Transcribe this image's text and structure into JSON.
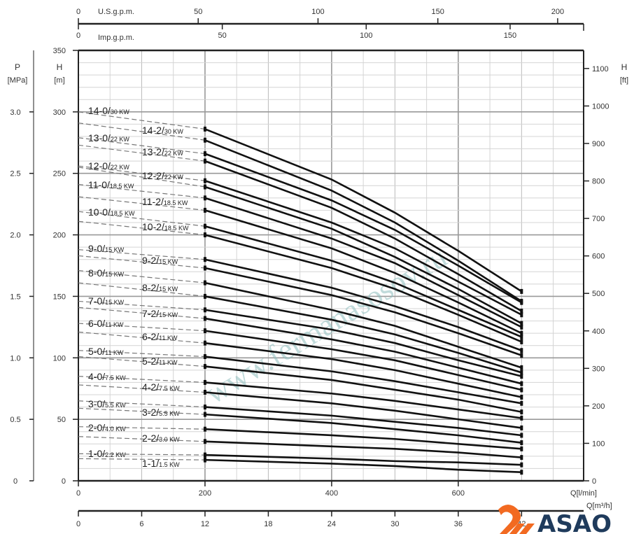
{
  "watermark": "www.fermanasosov.ru",
  "logo": {
    "text": "ASAO",
    "color": "#1f3b5c",
    "mark_color": "#f26a21"
  },
  "chart_data": {
    "type": "line",
    "grid": true,
    "x_axis": {
      "label": "Q[l/min]",
      "range": [
        0,
        800
      ],
      "ticks": [
        0,
        200,
        400,
        600
      ]
    },
    "x_axis_m3h": {
      "label": "Q[m³/h]",
      "ticks": [
        0,
        6,
        12,
        18,
        24,
        30,
        36,
        42
      ]
    },
    "x_axis_usgpm": {
      "label": "U.S.g.p.m.",
      "ticks": [
        0,
        50,
        100,
        150,
        200
      ]
    },
    "x_axis_impgpm": {
      "label": "Imp.g.p.m.",
      "ticks": [
        0,
        50,
        100,
        150
      ]
    },
    "y_axis_m": {
      "label": "H",
      "unit": "[m]",
      "range": [
        0,
        350
      ],
      "ticks": [
        0,
        50,
        100,
        150,
        200,
        250,
        300,
        350
      ]
    },
    "y_axis_mpa": {
      "label": "P",
      "unit": "[MPa]",
      "ticks": [
        "0",
        "0.5",
        "1.0",
        "1.5",
        "2.0",
        "2.5",
        "3.0"
      ]
    },
    "y_axis_ft": {
      "label": "H",
      "unit": "[ft]",
      "ticks": [
        0,
        100,
        200,
        300,
        400,
        500,
        600,
        700,
        800,
        900,
        1000,
        1100
      ]
    },
    "x": [
      200,
      400,
      500,
      600,
      700
    ],
    "series": [
      {
        "name": "14-0/",
        "power": "30 KW",
        "shutoff": 300,
        "values": [
          286,
          245,
          218,
          187,
          154
        ]
      },
      {
        "name": "14-2/",
        "power": "30 KW",
        "shutoff": 291,
        "values": [
          277,
          236,
          210,
          179,
          146
        ]
      },
      {
        "name": "13-0/",
        "power": "22 KW",
        "shutoff": 279,
        "values": [
          266,
          228,
          204,
          175,
          145
        ]
      },
      {
        "name": "13-2/",
        "power": "22 KW",
        "shutoff": 273,
        "values": [
          260,
          222,
          197,
          168,
          138
        ]
      },
      {
        "name": "12-0/",
        "power": "22 KW",
        "shutoff": 256,
        "values": [
          244,
          210,
          189,
          162,
          135
        ]
      },
      {
        "name": "12-2/",
        "power": "22 KW",
        "shutoff": 255,
        "values": [
          239,
          205,
          182,
          156,
          128
        ]
      },
      {
        "name": "11-0/",
        "power": "18.5 KW",
        "shutoff": 241,
        "values": [
          230,
          197,
          177,
          151,
          125
        ]
      },
      {
        "name": "11-2/",
        "power": "18.5 KW",
        "shutoff": 231,
        "values": [
          220,
          189,
          169,
          145,
          120
        ]
      },
      {
        "name": "10-0/",
        "power": "18.5 KW",
        "shutoff": 219,
        "values": [
          207,
          179,
          161,
          139,
          117
        ]
      },
      {
        "name": "10-2/",
        "power": "18.5 KW",
        "shutoff": 211,
        "values": [
          200,
          173,
          156,
          135,
          113
        ]
      },
      {
        "name": "9-0/",
        "power": "15 KW",
        "shutoff": 188,
        "values": [
          180,
          157,
          142,
          125,
          106
        ]
      },
      {
        "name": "9-2/",
        "power": "15 KW",
        "shutoff": 183,
        "values": [
          173,
          151,
          137,
          120,
          102
        ]
      },
      {
        "name": "8-0/",
        "power": "15 KW",
        "shutoff": 171,
        "values": [
          161,
          139,
          126,
          109,
          92
        ]
      },
      {
        "name": "8-2/",
        "power": "15 KW",
        "shutoff": 161,
        "values": [
          150,
          131,
          119,
          104,
          88
        ]
      },
      {
        "name": "7-0/",
        "power": "15 KW",
        "shutoff": 146,
        "values": [
          139,
          123,
          112,
          98,
          85
        ]
      },
      {
        "name": "7-2/",
        "power": "15 KW",
        "shutoff": 141,
        "values": [
          132,
          115,
          105,
          92,
          79
        ]
      },
      {
        "name": "6-0/",
        "power": "11 KW",
        "shutoff": 128,
        "values": [
          122,
          107,
          98,
          86,
          74
        ]
      },
      {
        "name": "6-2/",
        "power": "11 KW",
        "shutoff": 121,
        "values": [
          112,
          99,
          90,
          79,
          68
        ]
      },
      {
        "name": "5-0/",
        "power": "11 KW",
        "shutoff": 106,
        "values": [
          101,
          89,
          81,
          72,
          63
        ]
      },
      {
        "name": "5-2/",
        "power": "11 KW",
        "shutoff": 101,
        "values": [
          93,
          82,
          74,
          66,
          56
        ]
      },
      {
        "name": "4-0/",
        "power": "7.5 KW",
        "shutoff": 85,
        "values": [
          80,
          71,
          65,
          58,
          51
        ]
      },
      {
        "name": "4-2/",
        "power": "7.5 KW",
        "shutoff": 78,
        "values": [
          72,
          63,
          57,
          50,
          43
        ]
      },
      {
        "name": "3-0/",
        "power": "5.5 KW",
        "shutoff": 65,
        "values": [
          60,
          53,
          48,
          43,
          37
        ]
      },
      {
        "name": "3-2/",
        "power": "5.5 KW",
        "shutoff": 59,
        "values": [
          54,
          47,
          42,
          37,
          31
        ]
      },
      {
        "name": "2-0/",
        "power": "4.0 KW",
        "shutoff": 44,
        "values": [
          42,
          37,
          34,
          30,
          26
        ]
      },
      {
        "name": "2-2/",
        "power": "3.0 KW",
        "shutoff": 36,
        "values": [
          32,
          28,
          26,
          23,
          19
        ]
      },
      {
        "name": "1-0/",
        "power": "2.2 KW",
        "shutoff": 22,
        "values": [
          21,
          18,
          16,
          15,
          13
        ]
      },
      {
        "name": "1-1/",
        "power": "1.5 KW",
        "shutoff": 18,
        "values": [
          17,
          14,
          12,
          9,
          7
        ]
      }
    ]
  }
}
